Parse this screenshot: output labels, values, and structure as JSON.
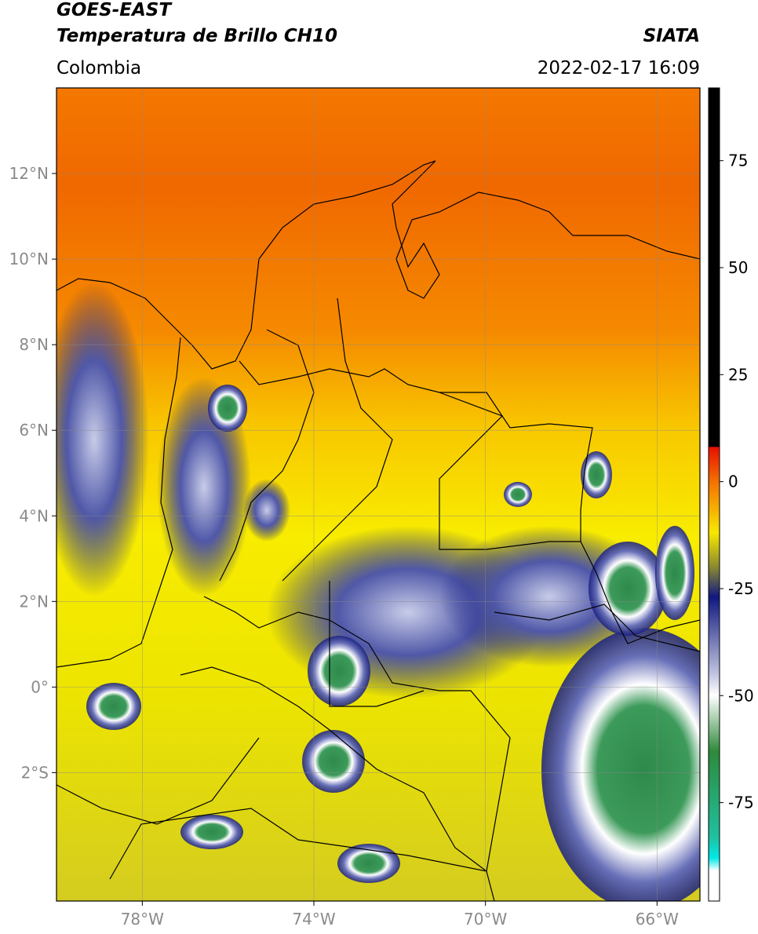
{
  "header": {
    "title": "GOES-EAST",
    "subtitle": "Temperatura de Brillo CH10",
    "region": "Colombia",
    "source": "SIATA",
    "datetime": "2022-02-17 16:09"
  },
  "map": {
    "xlim": [
      -80,
      -65
    ],
    "ylim": [
      -5,
      14
    ],
    "xticks": [
      {
        "value": -78,
        "label": "78°W"
      },
      {
        "value": -74,
        "label": "74°W"
      },
      {
        "value": -70,
        "label": "70°W"
      },
      {
        "value": -66,
        "label": "66°W"
      }
    ],
    "yticks": [
      {
        "value": 12,
        "label": "12°N"
      },
      {
        "value": 10,
        "label": "10°N"
      },
      {
        "value": 8,
        "label": "8°N"
      },
      {
        "value": 6,
        "label": "6°N"
      },
      {
        "value": 4,
        "label": "4°N"
      },
      {
        "value": 2,
        "label": "2°N"
      },
      {
        "value": 0,
        "label": "0°"
      },
      {
        "value": -2,
        "label": "2°S"
      }
    ]
  },
  "colorbar": {
    "lim": [
      -98,
      92
    ],
    "ticks": [
      75,
      50,
      25,
      0,
      -25,
      -50,
      -75
    ]
  }
}
